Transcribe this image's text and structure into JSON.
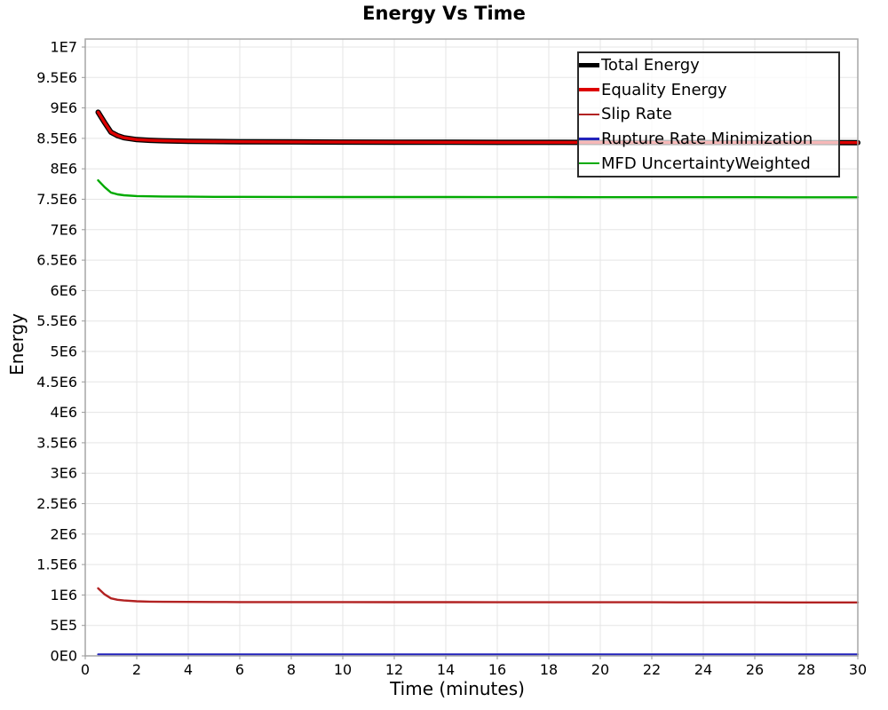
{
  "title": "Energy Vs Time",
  "x_axis": {
    "label": "Time (minutes)",
    "tick_labels": [
      "0",
      "2",
      "4",
      "6",
      "8",
      "10",
      "12",
      "14",
      "16",
      "18",
      "20",
      "22",
      "24",
      "26",
      "28",
      "30"
    ],
    "tick_values": [
      0,
      2,
      4,
      6,
      8,
      10,
      12,
      14,
      16,
      18,
      20,
      22,
      24,
      26,
      28,
      30
    ]
  },
  "y_axis": {
    "label": "Energy",
    "tick_labels": [
      "0E0",
      "5E5",
      "1E6",
      "1.5E6",
      "2E6",
      "2.5E6",
      "3E6",
      "3.5E6",
      "4E6",
      "4.5E6",
      "5E6",
      "5.5E6",
      "6E6",
      "6.5E6",
      "7E6",
      "7.5E6",
      "8E6",
      "8.5E6",
      "9E6",
      "9.5E6",
      "1E7"
    ],
    "tick_values": [
      0,
      500000,
      1000000,
      1500000,
      2000000,
      2500000,
      3000000,
      3500000,
      4000000,
      4500000,
      5000000,
      5500000,
      6000000,
      6500000,
      7000000,
      7500000,
      8000000,
      8500000,
      9000000,
      9500000,
      10000000
    ]
  },
  "colors": {
    "grid": "#E5E5E5",
    "plot_border": "#A6A6A6",
    "tick_mark": "#999999",
    "text": "#000000",
    "legend_border": "#2B2B2B"
  },
  "chart_data": {
    "type": "line",
    "title": "Energy Vs Time",
    "xlabel": "Time (minutes)",
    "ylabel": "Energy",
    "xlim": [
      0,
      30
    ],
    "ylim": [
      0,
      10000000
    ],
    "grid": true,
    "legend_position": "top-right",
    "x": [
      0.5,
      0.75,
      1,
      1.25,
      1.5,
      2,
      2.5,
      3,
      4,
      5,
      6,
      8,
      10,
      12,
      14,
      16,
      18,
      20,
      22,
      24,
      26,
      28,
      30
    ],
    "series": [
      {
        "name": "Total Energy",
        "color": "#000000",
        "line_width": 6,
        "legend_thickness": 5,
        "values": [
          8930000,
          8760000,
          8600000,
          8545000,
          8510000,
          8480000,
          8468000,
          8460000,
          8452000,
          8448000,
          8445000,
          8441000,
          8439000,
          8437000,
          8436000,
          8435000,
          8434000,
          8433000,
          8432000,
          8432000,
          8431000,
          8431000,
          8430000
        ]
      },
      {
        "name": "Equality Energy",
        "color": "#DD0000",
        "line_width": 3.4,
        "legend_thickness": 4,
        "values": [
          8930000,
          8760000,
          8600000,
          8545000,
          8510000,
          8480000,
          8468000,
          8460000,
          8452000,
          8448000,
          8445000,
          8441000,
          8439000,
          8437000,
          8436000,
          8435000,
          8434000,
          8433000,
          8432000,
          8432000,
          8431000,
          8431000,
          8430000
        ]
      },
      {
        "name": "Slip Rate",
        "color": "#B22222",
        "line_width": 2.4,
        "legend_thickness": 2.5,
        "values": [
          1110000,
          1010000,
          945000,
          922000,
          910000,
          897000,
          891000,
          888000,
          886000,
          885000,
          884000,
          883000,
          883000,
          882000,
          882000,
          881000,
          881000,
          880000,
          880000,
          879000,
          879000,
          878000,
          878000
        ]
      },
      {
        "name": "Rupture Rate Minimization",
        "color": "#2222BB",
        "line_width": 2.2,
        "legend_thickness": 2.5,
        "values": [
          25000,
          25000,
          25000,
          25000,
          25000,
          25000,
          25000,
          25000,
          25000,
          25000,
          25000,
          25000,
          25000,
          25000,
          25000,
          25000,
          25000,
          25000,
          25000,
          25000,
          25000,
          25000,
          25000
        ]
      },
      {
        "name": "MFD UncertaintyWeighted",
        "color": "#00AA00",
        "line_width": 2.4,
        "legend_thickness": 2.5,
        "values": [
          7810000,
          7700000,
          7610000,
          7580000,
          7565000,
          7553000,
          7548000,
          7545000,
          7542000,
          7540000,
          7539000,
          7538000,
          7537000,
          7536000,
          7536000,
          7535000,
          7535000,
          7534000,
          7534000,
          7533000,
          7533000,
          7532000,
          7532000
        ]
      }
    ]
  }
}
